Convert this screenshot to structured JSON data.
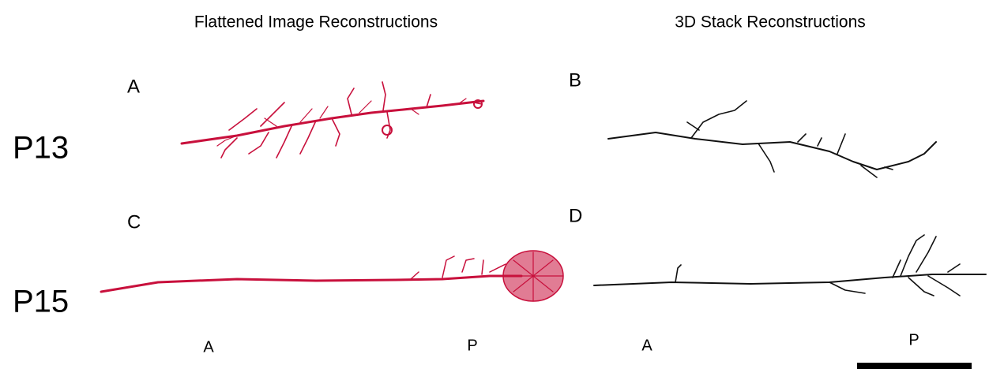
{
  "column_titles": [
    "Flattened Image Reconstructions",
    "3D Stack Reconstructions"
  ],
  "row_labels": [
    "P13",
    "P15"
  ],
  "panels": [
    "A",
    "B",
    "C",
    "D"
  ],
  "orientation_labels": [
    {
      "anterior": "A",
      "posterior": "P"
    },
    {
      "anterior": "A",
      "posterior": "P"
    }
  ]
}
